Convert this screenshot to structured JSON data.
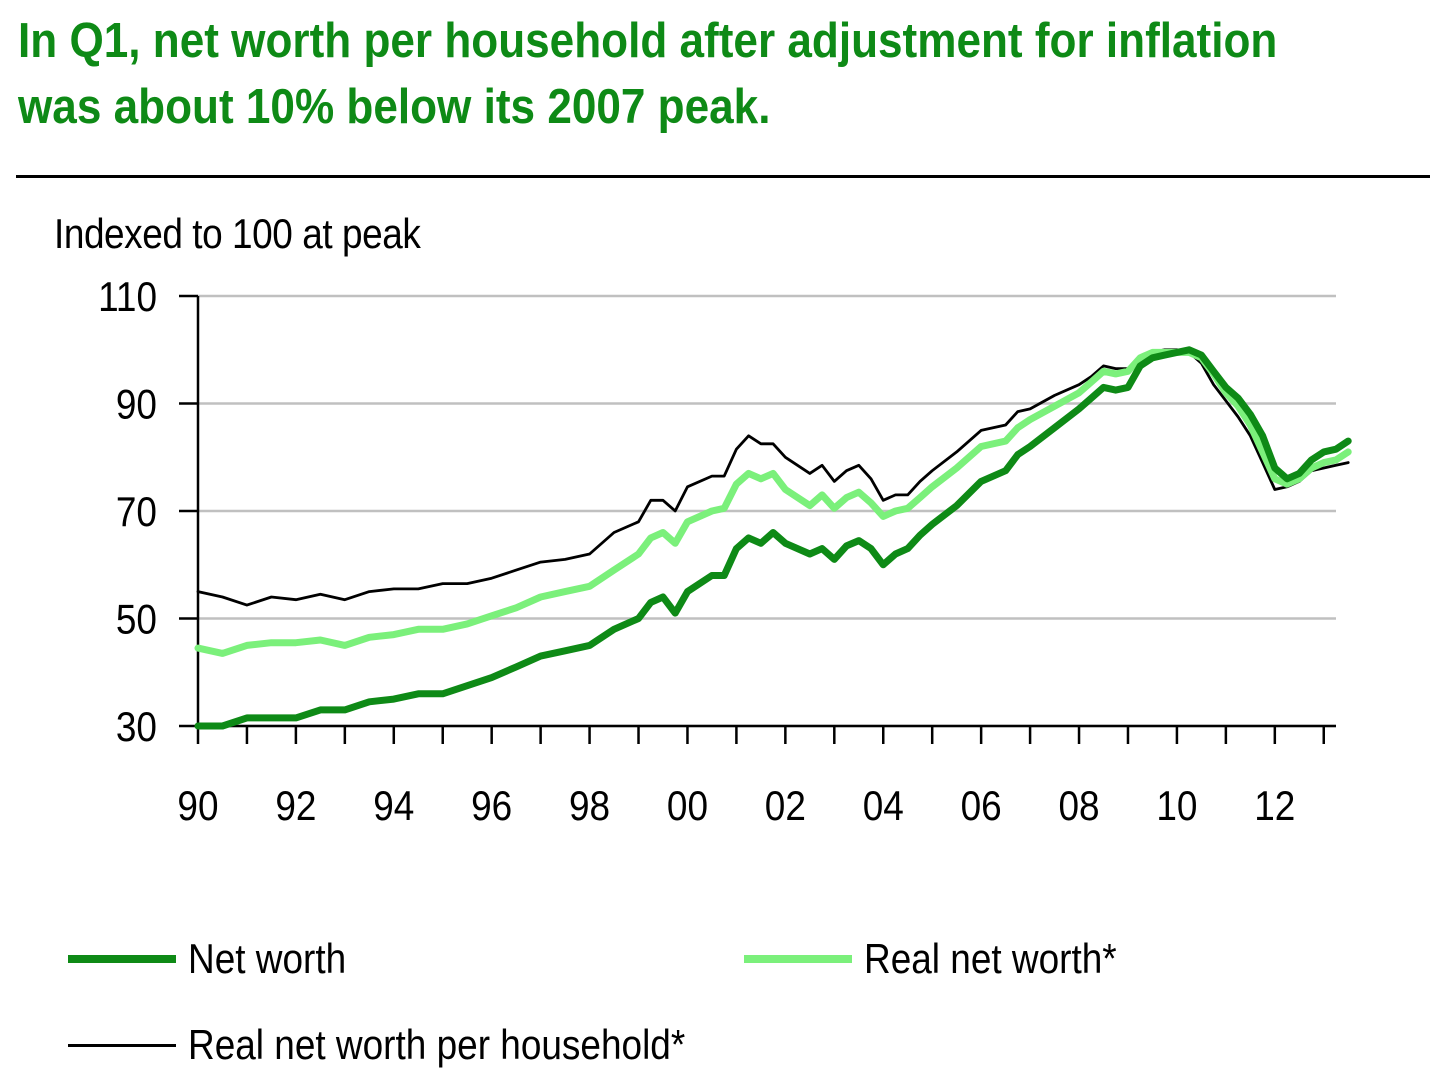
{
  "title": "In Q1, net worth per household after adjustment for inflation was about 10% below its 2007 peak.",
  "chart_data": {
    "type": "line",
    "ylabel": "Indexed to 100 at peak",
    "ylim": [
      30,
      110
    ],
    "yticks": [
      "110",
      "90",
      "70",
      "50",
      "30"
    ],
    "xlim": [
      1990,
      2013.25
    ],
    "xticks": [
      "90",
      "92",
      "94",
      "96",
      "98",
      "00",
      "02",
      "04",
      "06",
      "08",
      "10",
      "12"
    ],
    "grid": "horizontal",
    "legend_position": "bottom",
    "series": [
      {
        "name": "Net worth",
        "color": "#0e8a16",
        "style": "thick",
        "points": [
          [
            1990.0,
            30
          ],
          [
            1990.5,
            30
          ],
          [
            1991.0,
            31.5
          ],
          [
            1991.5,
            31.5
          ],
          [
            1992.0,
            31.5
          ],
          [
            1992.5,
            33
          ],
          [
            1993.0,
            33
          ],
          [
            1993.5,
            34.5
          ],
          [
            1994.0,
            35
          ],
          [
            1994.5,
            36
          ],
          [
            1995.0,
            36
          ],
          [
            1995.5,
            37.5
          ],
          [
            1996.0,
            39
          ],
          [
            1996.5,
            41
          ],
          [
            1997.0,
            43
          ],
          [
            1997.5,
            44
          ],
          [
            1998.0,
            45
          ],
          [
            1998.5,
            48
          ],
          [
            1999.0,
            50
          ],
          [
            1999.25,
            53
          ],
          [
            1999.5,
            54
          ],
          [
            1999.75,
            51
          ],
          [
            2000.0,
            55
          ],
          [
            2000.5,
            58
          ],
          [
            2000.75,
            58
          ],
          [
            2001.0,
            63
          ],
          [
            2001.25,
            65
          ],
          [
            2001.5,
            64
          ],
          [
            2001.75,
            66
          ],
          [
            2002.0,
            64
          ],
          [
            2002.5,
            62
          ],
          [
            2002.75,
            63
          ],
          [
            2003.0,
            61
          ],
          [
            2003.25,
            63.5
          ],
          [
            2003.5,
            64.5
          ],
          [
            2003.75,
            63
          ],
          [
            2004.0,
            60
          ],
          [
            2004.25,
            62
          ],
          [
            2004.5,
            63
          ],
          [
            2004.75,
            65.5
          ],
          [
            2005.0,
            67.5
          ],
          [
            2005.5,
            71
          ],
          [
            2006.0,
            75.5
          ],
          [
            2006.5,
            77.5
          ],
          [
            2006.75,
            80.5
          ],
          [
            2007.0,
            82
          ],
          [
            2007.5,
            85.5
          ],
          [
            2008.0,
            89
          ],
          [
            2008.25,
            91
          ],
          [
            2008.5,
            93
          ],
          [
            2008.75,
            92.5
          ],
          [
            2009.0,
            93
          ],
          [
            2009.25,
            97
          ],
          [
            2009.5,
            98.5
          ],
          [
            2009.75,
            99
          ],
          [
            2010.0,
            99.5
          ],
          [
            2010.25,
            100
          ],
          [
            2010.5,
            99
          ],
          [
            2010.75,
            96
          ],
          [
            2011.0,
            93
          ],
          [
            2011.25,
            91
          ],
          [
            2011.5,
            88
          ],
          [
            2011.75,
            84
          ],
          [
            2012.0,
            78
          ],
          [
            2012.25,
            76
          ],
          [
            2012.5,
            77
          ],
          [
            2012.75,
            79.5
          ],
          [
            2013.0,
            81
          ],
          [
            2013.25,
            81.5
          ],
          [
            2013.5,
            83
          ]
        ]
      },
      {
        "name": "Real net worth*",
        "color": "#7bf07b",
        "style": "thick",
        "points": [
          [
            1990.0,
            44.5
          ],
          [
            1990.5,
            43.5
          ],
          [
            1991.0,
            45
          ],
          [
            1991.5,
            45.5
          ],
          [
            1992.0,
            45.5
          ],
          [
            1992.5,
            46
          ],
          [
            1993.0,
            45
          ],
          [
            1993.5,
            46.5
          ],
          [
            1994.0,
            47
          ],
          [
            1994.5,
            48
          ],
          [
            1995.0,
            48
          ],
          [
            1995.5,
            49
          ],
          [
            1996.0,
            50.5
          ],
          [
            1996.5,
            52
          ],
          [
            1997.0,
            54
          ],
          [
            1997.5,
            55
          ],
          [
            1998.0,
            56
          ],
          [
            1998.5,
            59
          ],
          [
            1999.0,
            62
          ],
          [
            1999.25,
            65
          ],
          [
            1999.5,
            66
          ],
          [
            1999.75,
            64
          ],
          [
            2000.0,
            68
          ],
          [
            2000.5,
            70
          ],
          [
            2000.75,
            70.5
          ],
          [
            2001.0,
            75
          ],
          [
            2001.25,
            77
          ],
          [
            2001.5,
            76
          ],
          [
            2001.75,
            77
          ],
          [
            2002.0,
            74
          ],
          [
            2002.5,
            71
          ],
          [
            2002.75,
            73
          ],
          [
            2003.0,
            70.5
          ],
          [
            2003.25,
            72.5
          ],
          [
            2003.5,
            73.5
          ],
          [
            2003.75,
            71.5
          ],
          [
            2004.0,
            69
          ],
          [
            2004.25,
            70
          ],
          [
            2004.5,
            70.5
          ],
          [
            2004.75,
            72.5
          ],
          [
            2005.0,
            74.5
          ],
          [
            2005.5,
            78
          ],
          [
            2006.0,
            82
          ],
          [
            2006.5,
            83
          ],
          [
            2006.75,
            85.5
          ],
          [
            2007.0,
            87
          ],
          [
            2007.5,
            89.5
          ],
          [
            2008.0,
            92
          ],
          [
            2008.25,
            94
          ],
          [
            2008.5,
            96
          ],
          [
            2008.75,
            95.5
          ],
          [
            2009.0,
            96
          ],
          [
            2009.25,
            98.5
          ],
          [
            2009.5,
            99.5
          ],
          [
            2009.75,
            99.5
          ],
          [
            2010.0,
            99.5
          ],
          [
            2010.25,
            99.5
          ],
          [
            2010.5,
            98.5
          ],
          [
            2010.75,
            95.5
          ],
          [
            2011.0,
            92
          ],
          [
            2011.25,
            89.5
          ],
          [
            2011.5,
            86
          ],
          [
            2011.75,
            81
          ],
          [
            2012.0,
            76
          ],
          [
            2012.25,
            75
          ],
          [
            2012.5,
            76
          ],
          [
            2012.75,
            78
          ],
          [
            2013.0,
            79
          ],
          [
            2013.25,
            79.5
          ],
          [
            2013.5,
            81
          ]
        ]
      },
      {
        "name": "Real net worth per household*",
        "color": "#000000",
        "style": "thin",
        "points": [
          [
            1990.0,
            55
          ],
          [
            1990.5,
            54
          ],
          [
            1991.0,
            52.5
          ],
          [
            1991.5,
            54
          ],
          [
            1992.0,
            53.5
          ],
          [
            1992.5,
            54.5
          ],
          [
            1993.0,
            53.5
          ],
          [
            1993.5,
            55
          ],
          [
            1994.0,
            55.5
          ],
          [
            1994.5,
            55.5
          ],
          [
            1995.0,
            56.5
          ],
          [
            1995.5,
            56.5
          ],
          [
            1996.0,
            57.5
          ],
          [
            1996.5,
            59
          ],
          [
            1997.0,
            60.5
          ],
          [
            1997.5,
            61
          ],
          [
            1998.0,
            62
          ],
          [
            1998.5,
            66
          ],
          [
            1999.0,
            68
          ],
          [
            1999.25,
            72
          ],
          [
            1999.5,
            72
          ],
          [
            1999.75,
            70
          ],
          [
            2000.0,
            74.5
          ],
          [
            2000.5,
            76.5
          ],
          [
            2000.75,
            76.5
          ],
          [
            2001.0,
            81.5
          ],
          [
            2001.25,
            84
          ],
          [
            2001.5,
            82.5
          ],
          [
            2001.75,
            82.5
          ],
          [
            2002.0,
            80
          ],
          [
            2002.5,
            77
          ],
          [
            2002.75,
            78.5
          ],
          [
            2003.0,
            75.5
          ],
          [
            2003.25,
            77.5
          ],
          [
            2003.5,
            78.5
          ],
          [
            2003.75,
            76
          ],
          [
            2004.0,
            72
          ],
          [
            2004.25,
            73
          ],
          [
            2004.5,
            73
          ],
          [
            2004.75,
            75.5
          ],
          [
            2005.0,
            77.5
          ],
          [
            2005.5,
            81
          ],
          [
            2006.0,
            85
          ],
          [
            2006.5,
            86
          ],
          [
            2006.75,
            88.5
          ],
          [
            2007.0,
            89
          ],
          [
            2007.5,
            91.5
          ],
          [
            2008.0,
            93.5
          ],
          [
            2008.25,
            95
          ],
          [
            2008.5,
            97
          ],
          [
            2008.75,
            96.5
          ],
          [
            2009.0,
            96.5
          ],
          [
            2009.25,
            98.5
          ],
          [
            2009.5,
            99.5
          ],
          [
            2009.75,
            100
          ],
          [
            2010.0,
            100
          ],
          [
            2010.25,
            99.5
          ],
          [
            2010.5,
            97.5
          ],
          [
            2010.75,
            93.5
          ],
          [
            2011.0,
            90.5
          ],
          [
            2011.25,
            87.5
          ],
          [
            2011.5,
            84
          ],
          [
            2011.75,
            79
          ],
          [
            2012.0,
            74
          ],
          [
            2012.25,
            74.5
          ],
          [
            2012.5,
            75.5
          ],
          [
            2012.75,
            77.5
          ],
          [
            2013.0,
            78
          ],
          [
            2013.25,
            78.5
          ],
          [
            2013.5,
            79
          ]
        ]
      }
    ]
  },
  "legend": [
    {
      "label": "Net worth"
    },
    {
      "label": "Real net worth*"
    },
    {
      "label": "Real net worth per household*"
    }
  ]
}
